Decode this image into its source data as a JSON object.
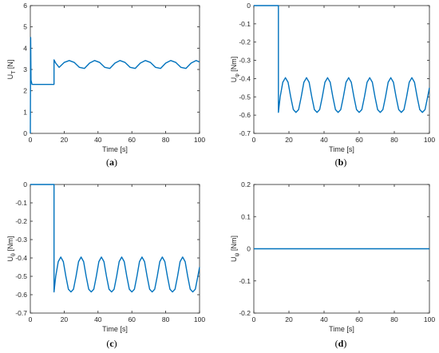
{
  "chart_data": [
    {
      "type": "line",
      "caption": "a",
      "xlabel": "Time [s]",
      "ylabel": "U",
      "ylabel_sub": "T",
      "ylabel_unit": " [N]",
      "xlim": [
        0,
        100
      ],
      "ylim": [
        0,
        6
      ],
      "xticks": [
        "0",
        "20",
        "40",
        "60",
        "80",
        "100"
      ],
      "yticks": [
        "0",
        "1",
        "2",
        "3",
        "4",
        "5",
        "6"
      ],
      "grid": false,
      "color": "#0072BD",
      "series": [
        {
          "values": [
            [
              0,
              0
            ],
            [
              0.2,
              4.5
            ],
            [
              0.4,
              2.5
            ],
            [
              1,
              2.3
            ],
            [
              14,
              2.3
            ],
            [
              14,
              3.45
            ],
            [
              15,
              3.3
            ],
            [
              17,
              3.1
            ],
            [
              20,
              3.33
            ],
            [
              23,
              3.42
            ],
            [
              26,
              3.33
            ],
            [
              29,
              3.1
            ],
            [
              32,
              3.05
            ],
            [
              35,
              3.3
            ],
            [
              38,
              3.42
            ],
            [
              41,
              3.33
            ],
            [
              44,
              3.1
            ],
            [
              47,
              3.05
            ],
            [
              50,
              3.3
            ],
            [
              53,
              3.42
            ],
            [
              56,
              3.33
            ],
            [
              59,
              3.1
            ],
            [
              62,
              3.05
            ],
            [
              65,
              3.3
            ],
            [
              68,
              3.42
            ],
            [
              71,
              3.33
            ],
            [
              74,
              3.1
            ],
            [
              77,
              3.05
            ],
            [
              80,
              3.3
            ],
            [
              83,
              3.42
            ],
            [
              86,
              3.33
            ],
            [
              89,
              3.1
            ],
            [
              92,
              3.05
            ],
            [
              95,
              3.3
            ],
            [
              98,
              3.42
            ],
            [
              100,
              3.35
            ]
          ]
        }
      ]
    },
    {
      "type": "line",
      "caption": "b",
      "xlabel": "Time [s]",
      "ylabel": "U",
      "ylabel_sub": "φ",
      "ylabel_unit": " [Nm]",
      "xlim": [
        0,
        100
      ],
      "ylim": [
        -0.7,
        0
      ],
      "xticks": [
        "0",
        "20",
        "40",
        "60",
        "80",
        "100"
      ],
      "yticks": [
        "0",
        "-0.1",
        "-0.2",
        "-0.3",
        "-0.4",
        "-0.5",
        "-0.6",
        "-0.7"
      ],
      "grid": false,
      "color": "#0072BD",
      "series": [
        {
          "values": [
            [
              0,
              0
            ],
            [
              14,
              0
            ],
            [
              14,
              -0.585
            ],
            [
              15,
              -0.5
            ],
            [
              16.5,
              -0.42
            ],
            [
              18,
              -0.395
            ],
            [
              19.5,
              -0.42
            ],
            [
              21,
              -0.5
            ],
            [
              22.5,
              -0.57
            ],
            [
              24,
              -0.585
            ],
            [
              25.5,
              -0.57
            ],
            [
              27,
              -0.5
            ],
            [
              28.5,
              -0.42
            ],
            [
              30,
              -0.395
            ],
            [
              31.5,
              -0.42
            ],
            [
              33,
              -0.5
            ],
            [
              34.5,
              -0.57
            ],
            [
              36,
              -0.585
            ],
            [
              37.5,
              -0.57
            ],
            [
              39,
              -0.5
            ],
            [
              40.5,
              -0.42
            ],
            [
              42,
              -0.395
            ],
            [
              43.5,
              -0.42
            ],
            [
              45,
              -0.5
            ],
            [
              46.5,
              -0.57
            ],
            [
              48,
              -0.585
            ],
            [
              49.5,
              -0.57
            ],
            [
              51,
              -0.5
            ],
            [
              52.5,
              -0.42
            ],
            [
              54,
              -0.395
            ],
            [
              55.5,
              -0.42
            ],
            [
              57,
              -0.5
            ],
            [
              58.5,
              -0.57
            ],
            [
              60,
              -0.585
            ],
            [
              61.5,
              -0.57
            ],
            [
              63,
              -0.5
            ],
            [
              64.5,
              -0.42
            ],
            [
              66,
              -0.395
            ],
            [
              67.5,
              -0.42
            ],
            [
              69,
              -0.5
            ],
            [
              70.5,
              -0.57
            ],
            [
              72,
              -0.585
            ],
            [
              73.5,
              -0.57
            ],
            [
              75,
              -0.5
            ],
            [
              76.5,
              -0.42
            ],
            [
              78,
              -0.395
            ],
            [
              79.5,
              -0.42
            ],
            [
              81,
              -0.5
            ],
            [
              82.5,
              -0.57
            ],
            [
              84,
              -0.585
            ],
            [
              85.5,
              -0.57
            ],
            [
              87,
              -0.5
            ],
            [
              88.5,
              -0.42
            ],
            [
              90,
              -0.395
            ],
            [
              91.5,
              -0.42
            ],
            [
              93,
              -0.5
            ],
            [
              94.5,
              -0.57
            ],
            [
              96,
              -0.585
            ],
            [
              97.5,
              -0.57
            ],
            [
              99,
              -0.5
            ],
            [
              100,
              -0.45
            ]
          ]
        }
      ]
    },
    {
      "type": "line",
      "caption": "c",
      "xlabel": "Time [s]",
      "ylabel": "U",
      "ylabel_sub": "θ",
      "ylabel_unit": " [Nm]",
      "xlim": [
        0,
        100
      ],
      "ylim": [
        -0.7,
        0
      ],
      "xticks": [
        "0",
        "20",
        "40",
        "60",
        "80",
        "100"
      ],
      "yticks": [
        "0",
        "-0.1",
        "-0.2",
        "-0.3",
        "-0.4",
        "-0.5",
        "-0.6",
        "-0.7"
      ],
      "grid": false,
      "color": "#0072BD",
      "series": [
        {
          "values": [
            [
              0,
              0
            ],
            [
              14,
              0
            ],
            [
              14,
              -0.585
            ],
            [
              15,
              -0.5
            ],
            [
              16.5,
              -0.42
            ],
            [
              18,
              -0.395
            ],
            [
              19.5,
              -0.42
            ],
            [
              21,
              -0.5
            ],
            [
              22.5,
              -0.57
            ],
            [
              24,
              -0.585
            ],
            [
              25.5,
              -0.57
            ],
            [
              27,
              -0.5
            ],
            [
              28.5,
              -0.42
            ],
            [
              30,
              -0.395
            ],
            [
              31.5,
              -0.42
            ],
            [
              33,
              -0.5
            ],
            [
              34.5,
              -0.57
            ],
            [
              36,
              -0.585
            ],
            [
              37.5,
              -0.57
            ],
            [
              39,
              -0.5
            ],
            [
              40.5,
              -0.42
            ],
            [
              42,
              -0.395
            ],
            [
              43.5,
              -0.42
            ],
            [
              45,
              -0.5
            ],
            [
              46.5,
              -0.57
            ],
            [
              48,
              -0.585
            ],
            [
              49.5,
              -0.57
            ],
            [
              51,
              -0.5
            ],
            [
              52.5,
              -0.42
            ],
            [
              54,
              -0.395
            ],
            [
              55.5,
              -0.42
            ],
            [
              57,
              -0.5
            ],
            [
              58.5,
              -0.57
            ],
            [
              60,
              -0.585
            ],
            [
              61.5,
              -0.57
            ],
            [
              63,
              -0.5
            ],
            [
              64.5,
              -0.42
            ],
            [
              66,
              -0.395
            ],
            [
              67.5,
              -0.42
            ],
            [
              69,
              -0.5
            ],
            [
              70.5,
              -0.57
            ],
            [
              72,
              -0.585
            ],
            [
              73.5,
              -0.57
            ],
            [
              75,
              -0.5
            ],
            [
              76.5,
              -0.42
            ],
            [
              78,
              -0.395
            ],
            [
              79.5,
              -0.42
            ],
            [
              81,
              -0.5
            ],
            [
              82.5,
              -0.57
            ],
            [
              84,
              -0.585
            ],
            [
              85.5,
              -0.57
            ],
            [
              87,
              -0.5
            ],
            [
              88.5,
              -0.42
            ],
            [
              90,
              -0.395
            ],
            [
              91.5,
              -0.42
            ],
            [
              93,
              -0.5
            ],
            [
              94.5,
              -0.57
            ],
            [
              96,
              -0.585
            ],
            [
              97.5,
              -0.57
            ],
            [
              99,
              -0.5
            ],
            [
              100,
              -0.45
            ]
          ]
        }
      ]
    },
    {
      "type": "line",
      "caption": "d",
      "xlabel": "Time [s]",
      "ylabel": "U",
      "ylabel_sub": "ψ",
      "ylabel_unit": " [Nm]",
      "xlim": [
        0,
        100
      ],
      "ylim": [
        -0.2,
        0.2
      ],
      "xticks": [
        "0",
        "20",
        "40",
        "60",
        "80",
        "100"
      ],
      "yticks": [
        "0.2",
        "0.1",
        "0",
        "-0.1",
        "-0.2"
      ],
      "grid": false,
      "color": "#0072BD",
      "series": [
        {
          "values": [
            [
              0,
              0
            ],
            [
              100,
              0
            ]
          ]
        }
      ]
    }
  ]
}
